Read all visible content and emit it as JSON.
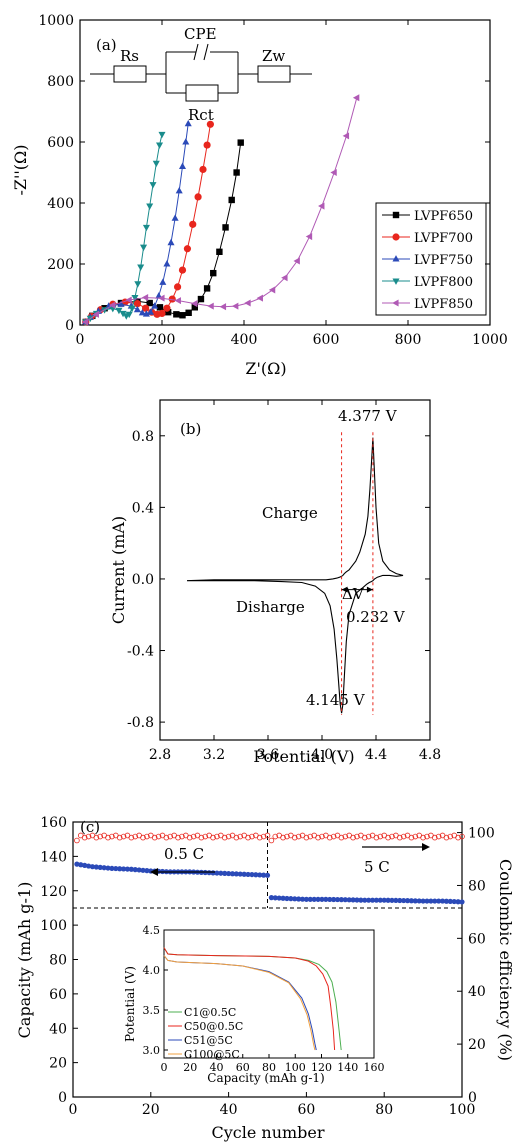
{
  "chart_data": [
    {
      "panel": "(a)",
      "type": "scatter",
      "xlabel": "Z'(Ω)",
      "ylabel": "-Z''(Ω)",
      "xlim": [
        0,
        1000
      ],
      "ylim": [
        0,
        1000
      ],
      "xticks": [
        0,
        200,
        400,
        600,
        800,
        1000
      ],
      "yticks": [
        0,
        200,
        400,
        600,
        800,
        1000
      ],
      "legend_position": "right",
      "circuit": {
        "rs": "Rs",
        "cpe": "CPE",
        "rct": "Rct",
        "zw": "Zw"
      },
      "series": [
        {
          "name": "LVPF650",
          "color": "#000000",
          "marker": "square",
          "x": [
            14,
            30,
            60,
            100,
            140,
            170,
            195,
            215,
            235,
            250,
            265,
            280,
            295,
            310,
            325,
            340,
            355,
            370,
            382,
            392
          ],
          "y": [
            10,
            30,
            55,
            72,
            78,
            72,
            58,
            42,
            35,
            32,
            40,
            58,
            85,
            120,
            170,
            240,
            320,
            410,
            500,
            598
          ]
        },
        {
          "name": "LVPF700",
          "color": "#e8261d",
          "marker": "circle",
          "x": [
            14,
            28,
            50,
            80,
            110,
            140,
            160,
            175,
            188,
            200,
            212,
            225,
            238,
            250,
            262,
            275,
            288,
            300,
            310,
            318
          ],
          "y": [
            10,
            28,
            50,
            68,
            75,
            70,
            55,
            42,
            35,
            38,
            55,
            85,
            125,
            180,
            250,
            330,
            420,
            510,
            590,
            658
          ]
        },
        {
          "name": "LVPF750",
          "color": "#2b4ab8",
          "marker": "triangle-up",
          "x": [
            14,
            25,
            45,
            70,
            100,
            125,
            140,
            152,
            162,
            172,
            182,
            192,
            202,
            212,
            222,
            232,
            242,
            250,
            258,
            264
          ],
          "y": [
            10,
            25,
            45,
            62,
            68,
            62,
            50,
            40,
            36,
            42,
            62,
            95,
            140,
            200,
            270,
            350,
            440,
            520,
            600,
            660
          ]
        },
        {
          "name": "LVPF800",
          "color": "#1a8c8c",
          "marker": "triangle-down",
          "x": [
            14,
            25,
            40,
            60,
            80,
            95,
            105,
            113,
            120,
            127,
            134,
            141,
            148,
            155,
            162,
            170,
            178,
            186,
            194,
            200
          ],
          "y": [
            10,
            22,
            38,
            50,
            54,
            48,
            38,
            30,
            35,
            55,
            90,
            135,
            190,
            255,
            320,
            390,
            460,
            530,
            590,
            625
          ]
        },
        {
          "name": "LVPF850",
          "color": "#b05ab5",
          "marker": "triangle-left",
          "x": [
            14,
            40,
            80,
            120,
            160,
            200,
            240,
            280,
            320,
            350,
            380,
            410,
            440,
            470,
            500,
            530,
            560,
            590,
            620,
            650,
            675
          ],
          "y": [
            10,
            35,
            65,
            82,
            90,
            88,
            80,
            70,
            62,
            60,
            62,
            72,
            88,
            115,
            155,
            210,
            290,
            390,
            500,
            620,
            745
          ]
        }
      ]
    },
    {
      "panel": "(b)",
      "type": "line",
      "xlabel": "Potential (V)",
      "ylabel": "Current (mA)",
      "xlim": [
        2.8,
        4.8
      ],
      "ylim": [
        -0.9,
        1.0
      ],
      "xticks": [
        "2.8",
        "3.2",
        "3.6",
        "4.0",
        "4.4",
        "4.8"
      ],
      "yticks": [
        "-0.8",
        "-0.4",
        "0.0",
        "0.4",
        "0.8"
      ],
      "annotations": {
        "peak_ox": "4.377 V",
        "peak_red": "4.145 V",
        "charge": "Charge",
        "discharge": "Disharge",
        "delta_v": "ΔV",
        "delta_value": "0.232 V"
      },
      "peak_potentials": [
        4.377,
        4.145
      ],
      "x": [
        3.0,
        3.3,
        3.5,
        3.7,
        3.85,
        3.95,
        4.02,
        4.06,
        4.09,
        4.11,
        4.125,
        4.135,
        4.145,
        4.155,
        4.165,
        4.18,
        4.2,
        4.25,
        4.3,
        4.33,
        4.35,
        4.365,
        4.377,
        4.39,
        4.41,
        4.45,
        4.5,
        4.55,
        4.6,
        4.55,
        4.5,
        4.45,
        4.42,
        4.4,
        4.385,
        4.377,
        4.37,
        4.355,
        4.34,
        4.32,
        4.28,
        4.25,
        4.22,
        4.2,
        4.18,
        4.165,
        4.155,
        4.145,
        4.13,
        4.11,
        4.08,
        4.03,
        3.95,
        3.8,
        3.6,
        3.4,
        3.2,
        3.0
      ],
      "y": [
        -0.01,
        -0.01,
        -0.01,
        -0.015,
        -0.02,
        -0.04,
        -0.08,
        -0.15,
        -0.28,
        -0.45,
        -0.6,
        -0.7,
        -0.75,
        -0.7,
        -0.55,
        -0.35,
        -0.2,
        -0.08,
        -0.05,
        -0.03,
        -0.02,
        -0.015,
        -0.01,
        0.0,
        0.01,
        0.02,
        0.02,
        0.015,
        0.02,
        0.03,
        0.05,
        0.1,
        0.2,
        0.4,
        0.65,
        0.79,
        0.7,
        0.5,
        0.35,
        0.25,
        0.15,
        0.1,
        0.07,
        0.05,
        0.04,
        0.03,
        0.02,
        0.015,
        0.01,
        0.005,
        0.0,
        -0.005,
        -0.005,
        -0.005,
        -0.005,
        -0.005,
        -0.005,
        -0.01
      ]
    },
    {
      "panel": "(c)",
      "type": "scatter",
      "xlabel": "Cycle number",
      "ylabel": "Capacity (mAh g-1)",
      "y2label": "Coulombic efficiency (%)",
      "xlim": [
        0,
        100
      ],
      "ylim": [
        0,
        160
      ],
      "y2lim": [
        0,
        104
      ],
      "xticks": [
        0,
        20,
        40,
        60,
        80,
        100
      ],
      "yticks": [
        0,
        20,
        40,
        60,
        80,
        100,
        120,
        140,
        160
      ],
      "y2ticks": [
        0,
        20,
        40,
        60,
        80,
        100
      ],
      "annotations": {
        "rate1": "0.5 C",
        "rate2": "5 C"
      },
      "capacity": {
        "color": "#2b4ab8",
        "points": [
          [
            1,
            135.5
          ],
          [
            5,
            134
          ],
          [
            10,
            133
          ],
          [
            15,
            132.5
          ],
          [
            20,
            131.5
          ],
          [
            25,
            131
          ],
          [
            30,
            131
          ],
          [
            35,
            130.5
          ],
          [
            40,
            130
          ],
          [
            45,
            129.5
          ],
          [
            50,
            129
          ],
          [
            51,
            116
          ],
          [
            55,
            115.5
          ],
          [
            60,
            115
          ],
          [
            65,
            115
          ],
          [
            70,
            114.8
          ],
          [
            75,
            114.5
          ],
          [
            80,
            114.5
          ],
          [
            85,
            114.3
          ],
          [
            90,
            114
          ],
          [
            95,
            114
          ],
          [
            100,
            113.5
          ]
        ]
      },
      "efficiency": {
        "color": "#e8261d",
        "start": 97,
        "value": 98.5
      },
      "inset": {
        "xlabel": "Capacity (mAh g-1)",
        "ylabel": "Potential (V)",
        "xlim": [
          0,
          160
        ],
        "ylim": [
          2.9,
          4.5
        ],
        "xticks": [
          0,
          20,
          40,
          60,
          80,
          100,
          120,
          140,
          160
        ],
        "yticks": [
          "3.0",
          "3.5",
          "4.0",
          "4.5"
        ],
        "series": [
          {
            "name": "C1@0.5C",
            "color": "#4caf50",
            "x": [
              0,
              3,
              10,
              40,
              80,
              100,
              110,
              118,
              124,
              128,
              131,
              133,
              135
            ],
            "y": [
              4.28,
              4.2,
              4.19,
              4.18,
              4.17,
              4.15,
              4.12,
              4.07,
              3.98,
              3.85,
              3.6,
              3.3,
              3.0
            ]
          },
          {
            "name": "C50@0.5C",
            "color": "#e8261d",
            "x": [
              0,
              3,
              10,
              40,
              80,
              100,
              110,
              116,
              121,
              125,
              127,
              129,
              130
            ],
            "y": [
              4.28,
              4.2,
              4.19,
              4.18,
              4.17,
              4.15,
              4.11,
              4.05,
              3.95,
              3.8,
              3.55,
              3.25,
              3.0
            ]
          },
          {
            "name": "C51@5C",
            "color": "#2b4ab8",
            "x": [
              0,
              3,
              10,
              40,
              60,
              80,
              95,
              105,
              110,
              113,
              115,
              116
            ],
            "y": [
              4.18,
              4.12,
              4.1,
              4.08,
              4.05,
              3.98,
              3.85,
              3.65,
              3.45,
              3.25,
              3.08,
              3.0
            ]
          },
          {
            "name": "C100@5C",
            "color": "#f0a040",
            "x": [
              0,
              3,
              10,
              40,
              60,
              80,
              95,
              104,
              109,
              112,
              114,
              115
            ],
            "y": [
              4.18,
              4.12,
              4.1,
              4.08,
              4.05,
              3.97,
              3.84,
              3.64,
              3.44,
              3.24,
              3.07,
              3.0
            ]
          }
        ]
      }
    }
  ]
}
